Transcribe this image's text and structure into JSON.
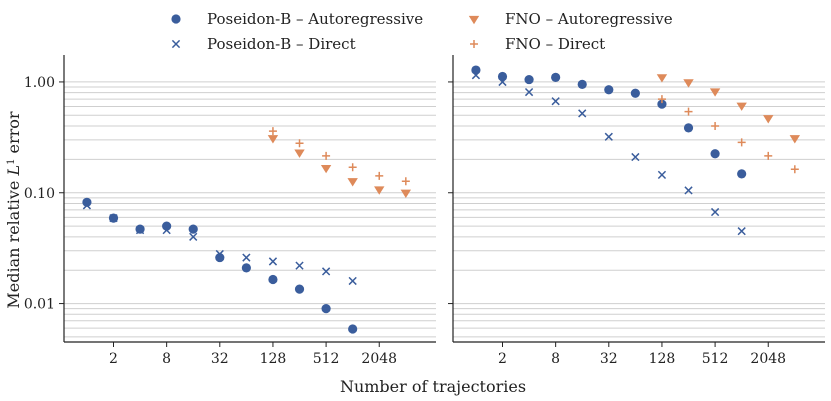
{
  "colors": {
    "poseidon": "#3a5d9c",
    "fno": "#de8a5a"
  },
  "chart_data": {
    "type": "scatter",
    "xlabel": "Number of trajectories",
    "ylabel": "Median relative L1 error",
    "x_scale": "log2",
    "y_scale": "log10",
    "xlim": [
      0.55,
      9000
    ],
    "ylim": [
      0.0045,
      1.75
    ],
    "x_ticks": [
      2,
      8,
      32,
      128,
      512,
      2048
    ],
    "x_tick_labels": [
      "2",
      "8",
      "32",
      "128",
      "512",
      "2048"
    ],
    "y_ticks": [
      0.01,
      0.1,
      1.0
    ],
    "y_tick_labels": [
      "0.01",
      "0.10",
      "1.00"
    ],
    "legend": [
      {
        "name": "Poseidon-B – Autoregressive",
        "marker": "circle",
        "color": "poseidon"
      },
      {
        "name": "FNO – Autoregressive",
        "marker": "triangle-down",
        "color": "fno"
      },
      {
        "name": "Poseidon-B – Direct",
        "marker": "x",
        "color": "poseidon"
      },
      {
        "name": "FNO – Direct",
        "marker": "plus",
        "color": "fno"
      }
    ],
    "panels": [
      {
        "name": "left",
        "series": [
          {
            "name": "Poseidon-B – Autoregressive",
            "marker": "circle",
            "color": "poseidon",
            "x": [
              1,
              2,
              4,
              8,
              16,
              32,
              64,
              128,
              256,
              512,
              1024
            ],
            "y": [
              0.082,
              0.059,
              0.047,
              0.05,
              0.047,
              0.026,
              0.021,
              0.0165,
              0.0135,
              0.009,
              0.0059
            ]
          },
          {
            "name": "Poseidon-B – Direct",
            "marker": "x",
            "color": "poseidon",
            "x": [
              1,
              2,
              4,
              8,
              16,
              32,
              64,
              128,
              256,
              512,
              1024
            ],
            "y": [
              0.077,
              0.059,
              0.046,
              0.046,
              0.04,
              0.028,
              0.026,
              0.024,
              0.022,
              0.0195,
              0.016
            ]
          },
          {
            "name": "FNO – Autoregressive",
            "marker": "triangle-down",
            "color": "fno",
            "x": [
              128,
              256,
              512,
              1024,
              2048,
              4096
            ],
            "y": [
              0.31,
              0.23,
              0.167,
              0.127,
              0.107,
              0.1
            ]
          },
          {
            "name": "FNO – Direct",
            "marker": "plus",
            "color": "fno",
            "x": [
              128,
              256,
              512,
              1024,
              2048,
              4096
            ],
            "y": [
              0.36,
              0.28,
              0.215,
              0.17,
              0.142,
              0.127
            ]
          }
        ]
      },
      {
        "name": "right",
        "series": [
          {
            "name": "Poseidon-B – Autoregressive",
            "marker": "circle",
            "color": "poseidon",
            "x": [
              1,
              2,
              4,
              8,
              16,
              32,
              64,
              128,
              256,
              512,
              1024
            ],
            "y": [
              1.28,
              1.12,
              1.05,
              1.1,
              0.95,
              0.85,
              0.79,
              0.63,
              0.385,
              0.225,
              0.148
            ]
          },
          {
            "name": "Poseidon-B – Direct",
            "marker": "x",
            "color": "poseidon",
            "x": [
              1,
              2,
              4,
              8,
              16,
              32,
              64,
              128,
              256,
              512,
              1024
            ],
            "y": [
              1.15,
              1.0,
              0.81,
              0.67,
              0.52,
              0.32,
              0.21,
              0.145,
              0.105,
              0.067,
              0.045
            ]
          },
          {
            "name": "FNO – Autoregressive",
            "marker": "triangle-down",
            "color": "fno",
            "x": [
              128,
              256,
              512,
              1024,
              2048,
              4096
            ],
            "y": [
              1.1,
              0.99,
              0.82,
              0.61,
              0.47,
              0.31
            ]
          },
          {
            "name": "FNO – Direct",
            "marker": "plus",
            "color": "fno",
            "x": [
              128,
              256,
              512,
              1024,
              2048,
              4096
            ],
            "y": [
              0.7,
              0.54,
              0.4,
              0.285,
              0.215,
              0.163
            ]
          }
        ]
      }
    ]
  }
}
